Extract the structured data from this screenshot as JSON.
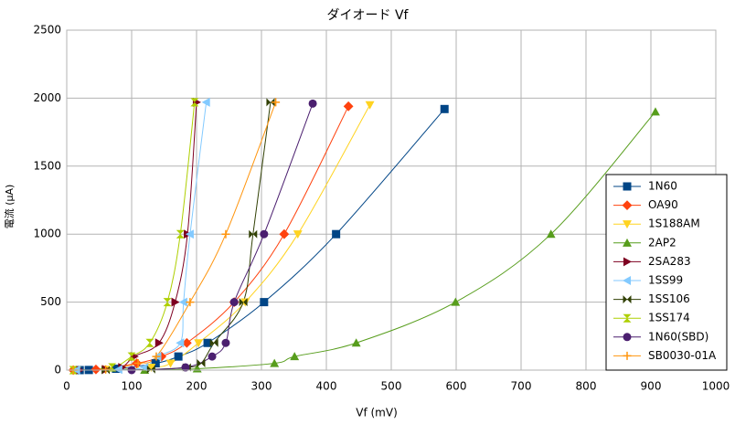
{
  "chart_data": {
    "type": "scatter",
    "title": "ダイオード Vf",
    "xlabel": "Vf (mV)",
    "ylabel": "電流 (μA)",
    "xlim": [
      0,
      1000
    ],
    "xticks": [
      0,
      100,
      200,
      300,
      400,
      500,
      600,
      700,
      800,
      900,
      1000
    ],
    "ylim": [
      0,
      2500
    ],
    "yticks": [
      0,
      500,
      1000,
      1500,
      2000,
      2500
    ],
    "grid": true,
    "smooth": true,
    "legend": "right",
    "series": [
      {
        "name": "1N60",
        "color": "#004586",
        "marker": "square",
        "x": [
          20,
          34,
          76,
          137,
          172,
          217,
          304,
          415,
          582
        ],
        "values": [
          0,
          1,
          10,
          50,
          100,
          200,
          500,
          1000,
          1920
        ]
      },
      {
        "name": "OA90",
        "color": "#ff420e",
        "marker": "diamond",
        "x": [
          10,
          45,
          108,
          146,
          185,
          258,
          335,
          434
        ],
        "values": [
          0,
          5,
          50,
          100,
          200,
          500,
          1000,
          1940
        ]
      },
      {
        "name": "1S188AM",
        "color": "#ffd320",
        "marker": "triangle-down",
        "x": [
          15,
          60,
          130,
          160,
          203,
          275,
          356,
          467
        ],
        "values": [
          0,
          5,
          20,
          50,
          200,
          500,
          1000,
          1950
        ]
      },
      {
        "name": "2AP2",
        "color": "#579d1c",
        "marker": "triangle-up",
        "x": [
          120,
          201,
          320,
          351,
          446,
          599,
          746,
          907
        ],
        "values": [
          0,
          10,
          50,
          100,
          200,
          500,
          1000,
          1900
        ]
      },
      {
        "name": "2SA283",
        "color": "#7e0021",
        "marker": "triangle-right",
        "x": [
          20,
          60,
          85,
          104,
          142,
          167,
          186,
          200
        ],
        "values": [
          0,
          5,
          20,
          100,
          200,
          500,
          1000,
          1970
        ]
      },
      {
        "name": "1SS99",
        "color": "#83caff",
        "marker": "triangle-left",
        "x": [
          15,
          80,
          120,
          140,
          175,
          180,
          190,
          215
        ],
        "values": [
          0,
          5,
          20,
          100,
          200,
          500,
          1000,
          1970
        ]
      },
      {
        "name": "1SS106",
        "color": "#314004",
        "marker": "bowtie",
        "x": [
          60,
          130,
          185,
          207,
          227,
          272,
          287,
          314
        ],
        "values": [
          0,
          5,
          20,
          50,
          200,
          500,
          1000,
          1970
        ]
      },
      {
        "name": "1SS174",
        "color": "#aecf00",
        "marker": "hourglass",
        "x": [
          10,
          70,
          100,
          128,
          155,
          175,
          197
        ],
        "values": [
          0,
          20,
          100,
          200,
          500,
          1000,
          1970
        ]
      },
      {
        "name": "1N60(SBD)",
        "color": "#4b1f6f",
        "marker": "circle",
        "x": [
          100,
          183,
          224,
          245,
          258,
          304,
          379
        ],
        "values": [
          0,
          20,
          100,
          200,
          500,
          1000,
          1960
        ]
      },
      {
        "name": "SB0030-01A",
        "color": "#ff950e",
        "marker": "plus",
        "x": [
          10,
          60,
          110,
          138,
          190,
          245,
          322
        ],
        "values": [
          0,
          5,
          50,
          100,
          500,
          1000,
          1970
        ]
      }
    ]
  }
}
